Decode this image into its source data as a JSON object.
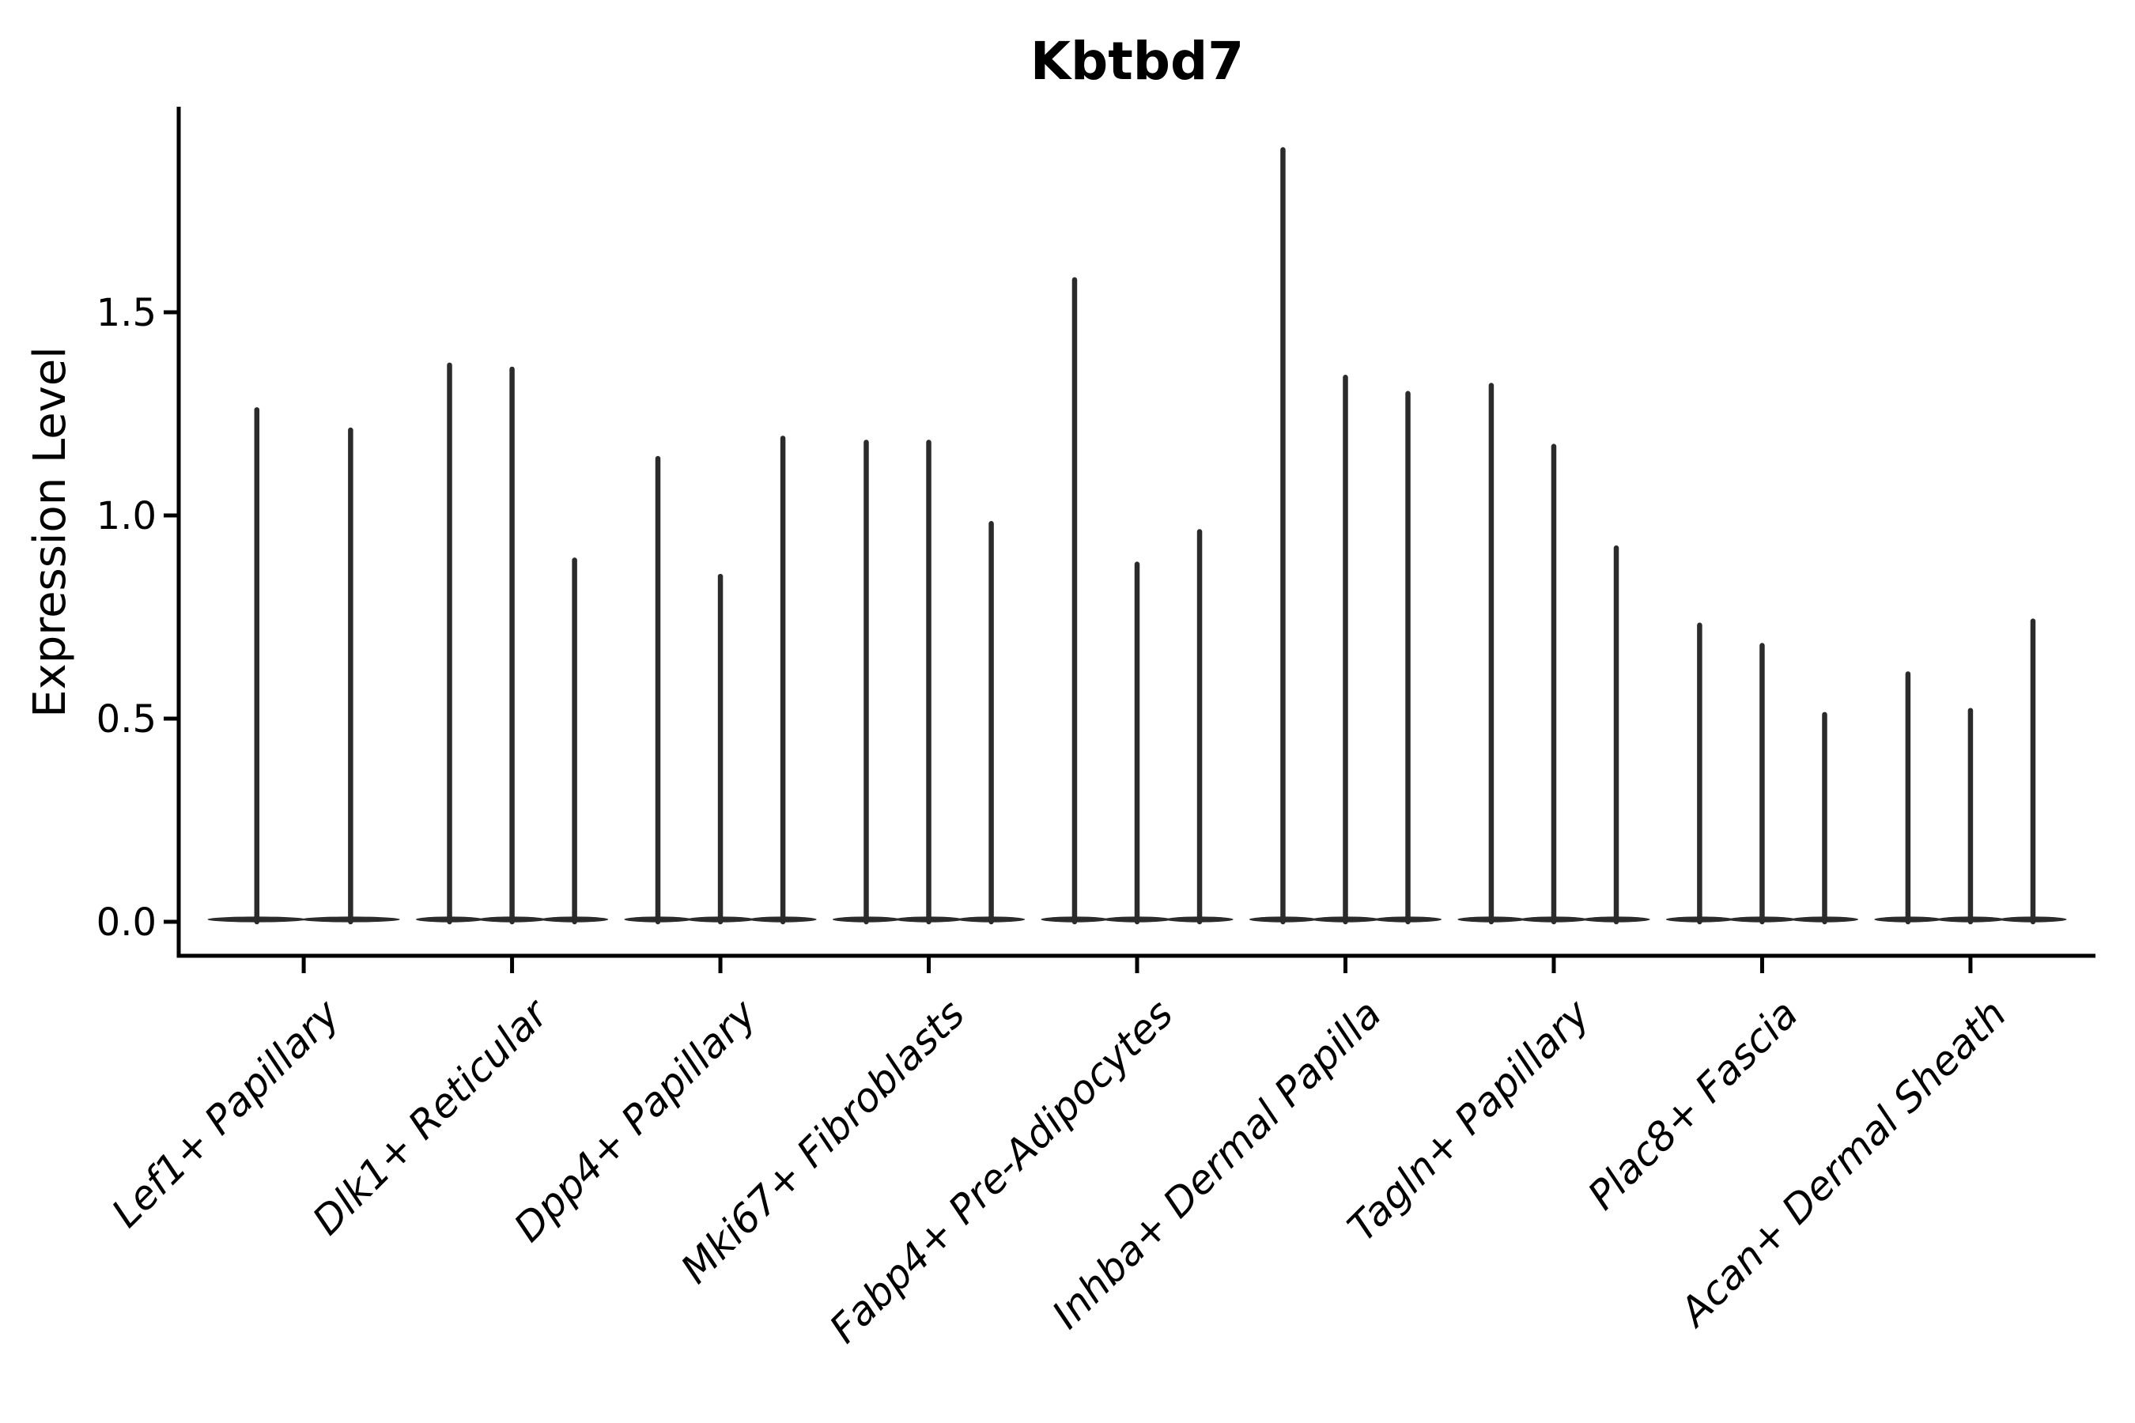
{
  "chart_data": {
    "type": "violin",
    "title": "Kbtbd7",
    "ylabel": "Expression Level",
    "xlabel": "",
    "categories": [
      "Lef1+ Papillary",
      "Dlk1+ Reticular",
      "Dpp4+ Papillary",
      "Mki67+ Fibroblasts",
      "Fabp4+ Pre-Adipocytes",
      "Inhba+ Dermal Papilla",
      "Tagln+ Papillary",
      "Plac8+ Fascia",
      "Acan+ Dermal Sheath"
    ],
    "series": [
      {
        "category": "Lef1+ Papillary",
        "violin_max_values": [
          1.26,
          1.21
        ]
      },
      {
        "category": "Dlk1+ Reticular",
        "violin_max_values": [
          1.37,
          1.36,
          0.89
        ]
      },
      {
        "category": "Dpp4+ Papillary",
        "violin_max_values": [
          1.14,
          0.85,
          1.19
        ]
      },
      {
        "category": "Mki67+ Fibroblasts",
        "violin_max_values": [
          1.18,
          1.18,
          0.98
        ]
      },
      {
        "category": "Fabp4+ Pre-Adipocytes",
        "violin_max_values": [
          1.58,
          0.88,
          0.96
        ]
      },
      {
        "category": "Inhba+ Dermal Papilla",
        "violin_max_values": [
          1.9,
          1.34,
          1.3
        ]
      },
      {
        "category": "Tagln+ Papillary",
        "violin_max_values": [
          1.32,
          1.17,
          0.92
        ]
      },
      {
        "category": "Plac8+ Fascia",
        "violin_max_values": [
          0.73,
          0.68,
          0.51
        ]
      },
      {
        "category": "Acan+ Dermal Sheath",
        "violin_max_values": [
          0.61,
          0.52,
          0.74
        ]
      }
    ],
    "yticks": [
      "0.0",
      "0.5",
      "1.0",
      "1.5"
    ],
    "ylim": [
      -0.08,
      2.0
    ],
    "grid": "off",
    "legend": "none",
    "violin_shape_hint": "mass concentrated at 0 (wide flat base) with thin spike to max value",
    "violin_color": "#2b2b2b",
    "axis_color": "#000000"
  }
}
